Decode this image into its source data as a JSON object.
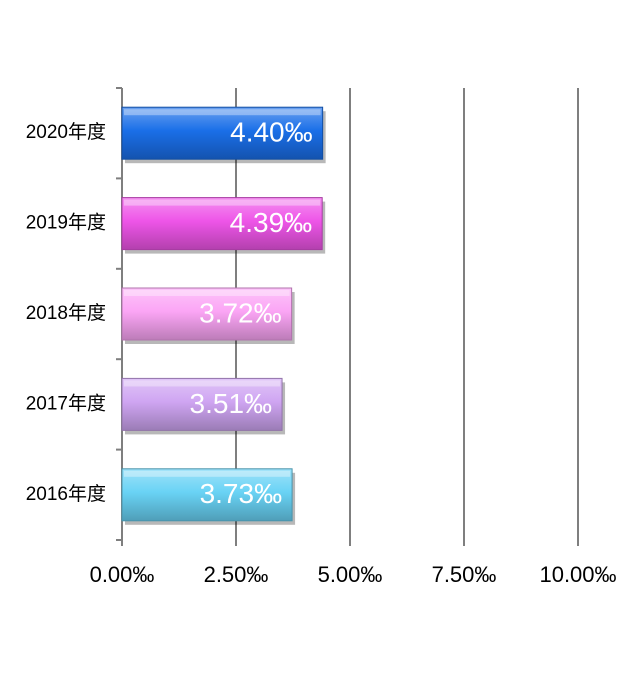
{
  "chart_data": {
    "type": "bar",
    "orientation": "horizontal",
    "categories": [
      "2020年度",
      "2019年度",
      "2018年度",
      "2017年度",
      "2016年度"
    ],
    "values": [
      4.4,
      4.39,
      3.72,
      3.51,
      3.73
    ],
    "data_labels": [
      "4.40‰",
      "4.39‰",
      "3.72‰",
      "3.51‰",
      "3.73‰"
    ],
    "colors": [
      "#1a6fe8",
      "#ee55e8",
      "#fba5f5",
      "#cfa5f2",
      "#69d3f5"
    ],
    "xlim": [
      0,
      10
    ],
    "xticks": [
      0,
      2.5,
      5,
      7.5,
      10
    ],
    "xtick_labels": [
      "0.00‰",
      "2.50‰",
      "5.00‰",
      "7.50‰",
      "10.00‰"
    ],
    "grid": true,
    "legend": false
  }
}
